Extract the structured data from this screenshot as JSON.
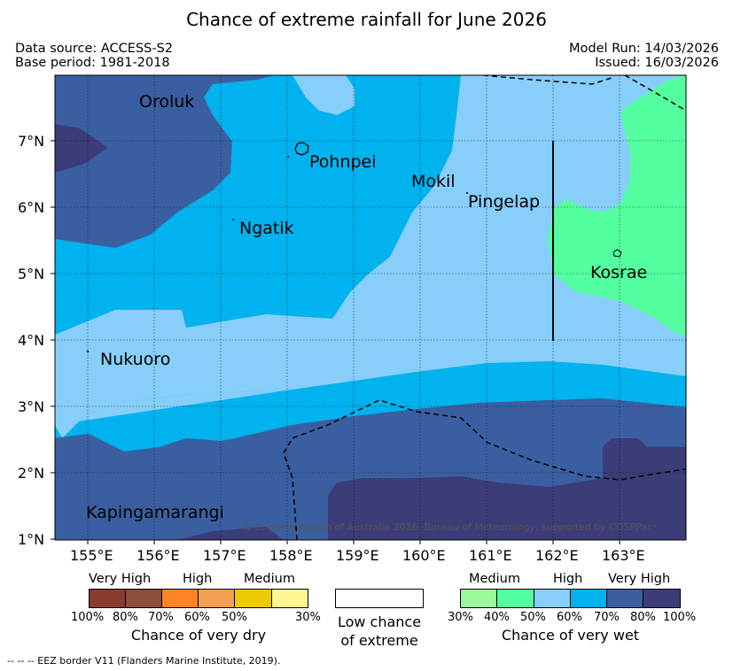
{
  "title": "Chance of extreme rainfall for June 2026",
  "meta": {
    "data_source": "Data source: ACCESS-S2",
    "base_period": "Base period: 1981-2018",
    "model_run": "Model Run: 14/03/2026",
    "issued": "Issued: 16/03/2026"
  },
  "map": {
    "lon_ticks": [
      "155°E",
      "156°E",
      "157°E",
      "158°E",
      "159°E",
      "160°E",
      "161°E",
      "162°E",
      "163°E"
    ],
    "lat_ticks": [
      "1°N",
      "2°N",
      "3°N",
      "4°N",
      "5°N",
      "6°N",
      "7°N"
    ],
    "places": {
      "oroluk": "Oroluk",
      "pohnpei": "Pohnpei",
      "mokil": "Mokil",
      "pingelap": "Pingelap",
      "ngatik": "Ngatik",
      "kosrae": "Kosrae",
      "nukuoro": "Nukuoro",
      "kapingamarangi": "Kapingamarangi"
    },
    "copyright": "© Commonwealth of Australia 2026, Bureau of Meteorology, supported by COSPPac"
  },
  "legend": {
    "dry": {
      "levels": [
        "Very High",
        "High",
        "Medium"
      ],
      "percents": [
        "100%",
        "80%",
        "70%",
        "60%",
        "50%",
        "30%"
      ],
      "caption": "Chance of very dry",
      "colors": [
        "#8b3a2f",
        "#8f4c3c",
        "#ff8427",
        "#f0a050",
        "#eec900",
        "#fff68f"
      ]
    },
    "low": {
      "line1": "Low chance",
      "line2": "of extreme"
    },
    "wet": {
      "levels": [
        "Medium",
        "High",
        "Very High"
      ],
      "percents": [
        "30%",
        "40%",
        "50%",
        "60%",
        "70%",
        "80%",
        "100%"
      ],
      "caption": "Chance of very wet",
      "colors": [
        "#9afa9a",
        "#54ff9f",
        "#87cefa",
        "#00b2ee",
        "#3a5fa0",
        "#3c3c78"
      ]
    }
  },
  "footnote": "-- -- -- EEZ border V11 (Flanders Marine Institute, 2019)."
}
